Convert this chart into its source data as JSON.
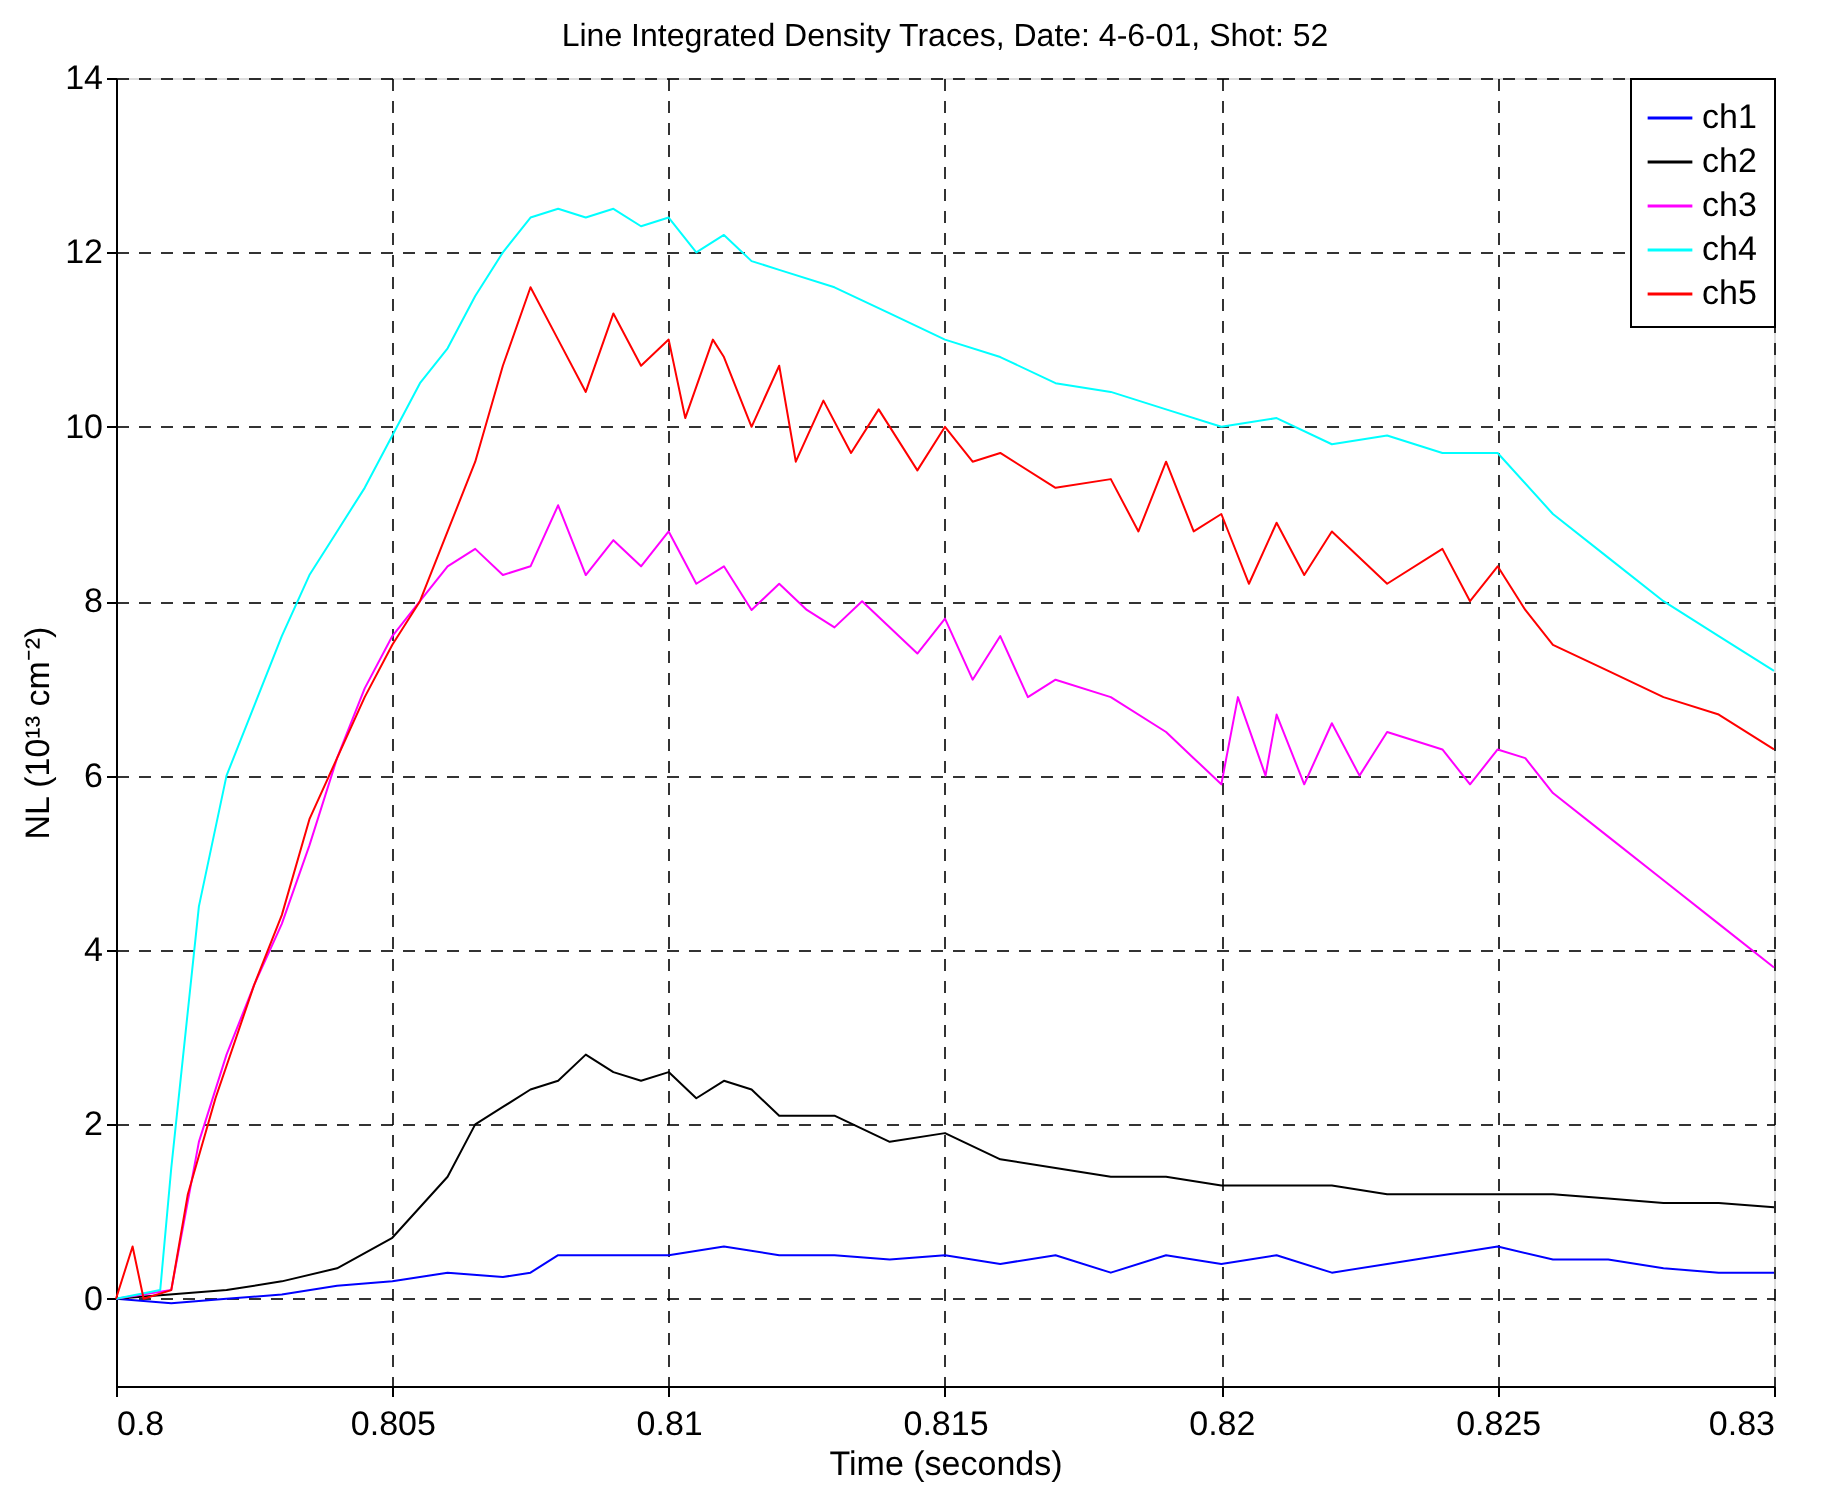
{
  "chart_data": {
    "type": "line",
    "title": "Line Integrated Density Traces,      Date: 4-6-01, Shot: 52",
    "xlabel": "Time (seconds)",
    "ylabel": "NL (10¹³ cm⁻²)",
    "xlim": [
      0.8,
      0.83
    ],
    "xticks": [
      0.8,
      0.805,
      0.81,
      0.815,
      0.82,
      0.825,
      0.83
    ],
    "ylim": [
      -1,
      14
    ],
    "yticks": [
      0,
      2,
      4,
      6,
      8,
      10,
      12,
      14
    ],
    "grid": true,
    "legend": "top right",
    "line_style": "solid",
    "marker": "none",
    "series": [
      {
        "name": "ch1",
        "color": "#0000ff",
        "x": [
          0.8,
          0.801,
          0.802,
          0.803,
          0.804,
          0.805,
          0.806,
          0.807,
          0.8075,
          0.808,
          0.809,
          0.81,
          0.811,
          0.812,
          0.813,
          0.814,
          0.815,
          0.816,
          0.817,
          0.818,
          0.819,
          0.82,
          0.821,
          0.822,
          0.823,
          0.824,
          0.825,
          0.826,
          0.827,
          0.828,
          0.829,
          0.83
        ],
        "values": [
          0,
          -0.05,
          0.0,
          0.05,
          0.15,
          0.2,
          0.3,
          0.25,
          0.3,
          0.5,
          0.5,
          0.5,
          0.6,
          0.5,
          0.5,
          0.45,
          0.5,
          0.4,
          0.5,
          0.3,
          0.5,
          0.4,
          0.5,
          0.3,
          0.4,
          0.5,
          0.6,
          0.45,
          0.45,
          0.35,
          0.3,
          0.3
        ]
      },
      {
        "name": "ch2",
        "color": "#000000",
        "x": [
          0.8,
          0.802,
          0.803,
          0.804,
          0.805,
          0.806,
          0.8065,
          0.807,
          0.8075,
          0.808,
          0.8085,
          0.809,
          0.8095,
          0.81,
          0.8105,
          0.811,
          0.8115,
          0.812,
          0.813,
          0.814,
          0.815,
          0.816,
          0.817,
          0.818,
          0.819,
          0.82,
          0.821,
          0.822,
          0.823,
          0.824,
          0.825,
          0.826,
          0.827,
          0.828,
          0.829,
          0.83
        ],
        "values": [
          0,
          0.1,
          0.2,
          0.35,
          0.7,
          1.4,
          2.0,
          2.2,
          2.4,
          2.5,
          2.8,
          2.6,
          2.5,
          2.6,
          2.3,
          2.5,
          2.4,
          2.1,
          2.1,
          1.8,
          1.9,
          1.6,
          1.5,
          1.4,
          1.4,
          1.3,
          1.3,
          1.3,
          1.2,
          1.2,
          1.2,
          1.2,
          1.15,
          1.1,
          1.1,
          1.05
        ]
      },
      {
        "name": "ch3",
        "color": "#ff00ff",
        "x": [
          0.8,
          0.801,
          0.8015,
          0.802,
          0.8025,
          0.803,
          0.8035,
          0.804,
          0.8045,
          0.805,
          0.8055,
          0.806,
          0.8065,
          0.807,
          0.8075,
          0.808,
          0.8085,
          0.809,
          0.8095,
          0.81,
          0.8105,
          0.811,
          0.8115,
          0.812,
          0.8125,
          0.813,
          0.8135,
          0.8145,
          0.815,
          0.8155,
          0.816,
          0.8165,
          0.817,
          0.818,
          0.819,
          0.8195,
          0.82,
          0.8203,
          0.8208,
          0.821,
          0.8215,
          0.822,
          0.8225,
          0.823,
          0.824,
          0.8245,
          0.825,
          0.8255,
          0.826,
          0.827,
          0.828,
          0.829,
          0.83
        ],
        "values": [
          0,
          0.1,
          1.8,
          2.8,
          3.6,
          4.3,
          5.2,
          6.2,
          7.0,
          7.6,
          8.0,
          8.4,
          8.6,
          8.3,
          8.4,
          9.1,
          8.3,
          8.7,
          8.4,
          8.8,
          8.2,
          8.4,
          7.9,
          8.2,
          7.9,
          7.7,
          8.0,
          7.4,
          7.8,
          7.1,
          7.6,
          6.9,
          7.1,
          6.9,
          6.5,
          6.2,
          5.9,
          6.9,
          6.0,
          6.7,
          5.9,
          6.6,
          6.0,
          6.5,
          6.3,
          5.9,
          6.3,
          6.2,
          5.8,
          5.3,
          4.8,
          4.3,
          3.8
        ]
      },
      {
        "name": "ch4",
        "color": "#00ffff",
        "x": [
          0.8,
          0.8008,
          0.801,
          0.8015,
          0.802,
          0.8025,
          0.803,
          0.8035,
          0.804,
          0.8045,
          0.805,
          0.8055,
          0.806,
          0.8065,
          0.807,
          0.8075,
          0.808,
          0.8085,
          0.809,
          0.8095,
          0.81,
          0.8105,
          0.811,
          0.8115,
          0.812,
          0.813,
          0.814,
          0.815,
          0.816,
          0.817,
          0.818,
          0.819,
          0.82,
          0.821,
          0.822,
          0.823,
          0.824,
          0.825,
          0.826,
          0.827,
          0.828,
          0.829,
          0.83
        ],
        "values": [
          0,
          0.1,
          1.5,
          4.5,
          6,
          6.8,
          7.6,
          8.3,
          8.8,
          9.3,
          9.9,
          10.5,
          10.9,
          11.5,
          12.0,
          12.4,
          12.5,
          12.4,
          12.5,
          12.3,
          12.4,
          12.0,
          12.2,
          11.9,
          11.8,
          11.6,
          11.3,
          11.0,
          10.8,
          10.5,
          10.4,
          10.2,
          10.0,
          10.1,
          9.8,
          9.9,
          9.7,
          9.7,
          9.0,
          8.5,
          8.0,
          7.6,
          7.2
        ]
      },
      {
        "name": "ch5",
        "color": "#ff0000",
        "x": [
          0.8,
          0.8003,
          0.8005,
          0.801,
          0.8013,
          0.8018,
          0.8025,
          0.803,
          0.8035,
          0.804,
          0.8045,
          0.805,
          0.8055,
          0.806,
          0.8065,
          0.807,
          0.8075,
          0.808,
          0.8085,
          0.809,
          0.8095,
          0.81,
          0.8103,
          0.8108,
          0.811,
          0.8115,
          0.812,
          0.8123,
          0.8128,
          0.8133,
          0.8138,
          0.8145,
          0.815,
          0.8155,
          0.816,
          0.817,
          0.818,
          0.8185,
          0.819,
          0.8195,
          0.82,
          0.8205,
          0.821,
          0.8215,
          0.822,
          0.823,
          0.824,
          0.8245,
          0.825,
          0.8255,
          0.826,
          0.827,
          0.828,
          0.829,
          0.83
        ],
        "values": [
          0,
          0.6,
          0,
          0.1,
          1.2,
          2.3,
          3.6,
          4.4,
          5.5,
          6.2,
          6.9,
          7.5,
          8.0,
          8.8,
          9.6,
          10.7,
          11.6,
          11.0,
          10.4,
          11.3,
          10.7,
          11.0,
          10.1,
          11.0,
          10.8,
          10.0,
          10.7,
          9.6,
          10.3,
          9.7,
          10.2,
          9.5,
          10.0,
          9.6,
          9.7,
          9.3,
          9.4,
          8.8,
          9.6,
          8.8,
          9.0,
          8.2,
          8.9,
          8.3,
          8.8,
          8.2,
          8.6,
          8.0,
          8.4,
          7.9,
          7.5,
          7.2,
          6.9,
          6.7,
          6.3
        ]
      }
    ]
  }
}
